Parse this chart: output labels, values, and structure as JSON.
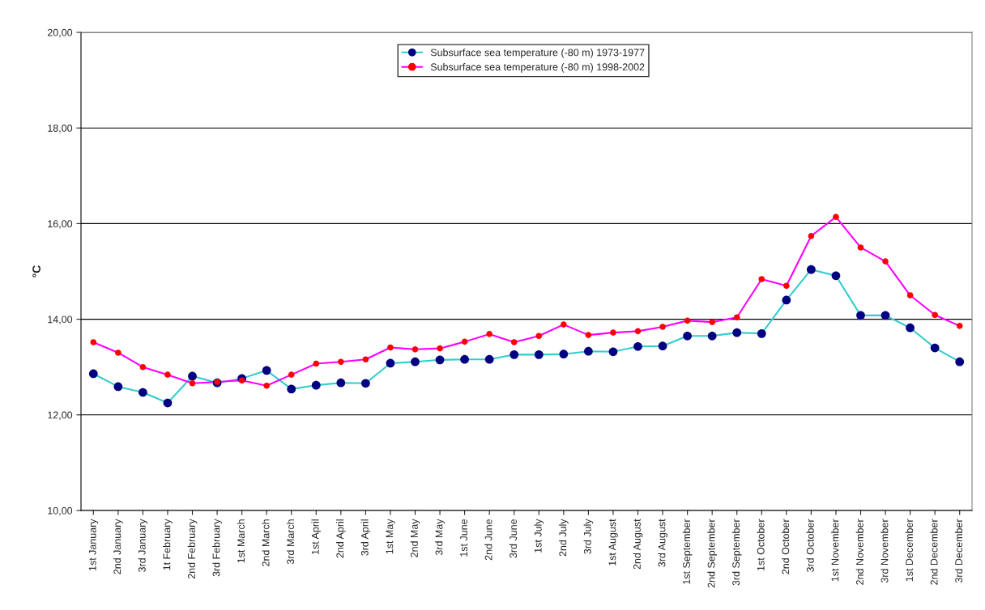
{
  "chart_data": {
    "type": "line",
    "ylabel": "°C",
    "categories": [
      "1st January",
      "2nd January",
      "3rd January",
      "1t February",
      "2nd February",
      "3rd February",
      "1st March",
      "2nd March",
      "3rd March",
      "1st April",
      "2nd April",
      "3rd April",
      "1st May",
      "2nd May",
      "3rd May",
      "1st June",
      "2nd June",
      "3rd June",
      "1st July",
      "2nd July",
      "3rd July",
      "1st August",
      "2nd August",
      "3rd August",
      "1st September",
      "2nd September",
      "3rd September",
      "1st October",
      "2nd October",
      "3rd October",
      "1st November",
      "2nd November",
      "3rd November",
      "1st December",
      "2nd December",
      "3rd December"
    ],
    "series": [
      {
        "name": "Subsurface sea temperature (-80 m) 1973-1977",
        "color": "#33cccc",
        "colors": [
          "#000080",
          "#000080",
          "#000080",
          "#000080",
          "#000080",
          "#000080",
          "#000080",
          "#000080",
          "#000080",
          "#000080",
          "#000080",
          "#000080",
          "#000080",
          "#000080",
          "#000080",
          "#000080",
          "#000080",
          "#000080",
          "#000080",
          "#000080",
          "#000080",
          "#000080",
          "#000080",
          "#000080",
          "#000080",
          "#000080",
          "#000080",
          "#000080",
          "#000080",
          "#000080",
          "#000080",
          "#000080",
          "#000080",
          "#000080",
          "#000080",
          "#000080"
        ],
        "values": [
          12.86,
          12.59,
          12.47,
          12.25,
          12.81,
          12.67,
          12.76,
          12.93,
          12.54,
          12.62,
          12.67,
          12.66,
          13.08,
          13.11,
          13.15,
          13.16,
          13.16,
          13.26,
          13.26,
          13.27,
          13.33,
          13.32,
          13.43,
          13.44,
          13.65,
          13.65,
          13.72,
          13.7,
          14.4,
          15.04,
          14.91,
          14.08,
          14.08,
          13.82,
          13.4,
          13.11
        ]
      },
      {
        "name": "Subsurface sea temperature (-80 m) 1998-2002",
        "color": "#ff00ff",
        "colors": [
          "#ff0000",
          "#ff0000",
          "#ff0000",
          "#ff0000",
          "#ff0000",
          "#ff0000",
          "#ff0000",
          "#ff0000",
          "#ff0000",
          "#ff0000",
          "#ff0000",
          "#ff0000",
          "#ff0000",
          "#ff0000",
          "#ff0000",
          "#ff0000",
          "#ff0000",
          "#ff0000",
          "#ff0000",
          "#ff0000",
          "#ff0000",
          "#ff0000",
          "#ff0000",
          "#ff0000",
          "#ff0000",
          "#ff0000",
          "#ff0000",
          "#ff0000",
          "#ff0000",
          "#ff0000",
          "#ff0000",
          "#ff0000",
          "#ff0000",
          "#ff0000",
          "#ff0000",
          "#ff0000"
        ],
        "values": [
          13.52,
          13.3,
          13.0,
          12.84,
          12.66,
          12.69,
          12.72,
          12.61,
          12.84,
          13.07,
          13.11,
          13.16,
          13.41,
          13.37,
          13.39,
          13.53,
          13.69,
          13.52,
          13.65,
          13.89,
          13.67,
          13.72,
          13.75,
          13.84,
          13.97,
          13.94,
          14.04,
          14.84,
          14.7,
          15.74,
          16.14,
          15.5,
          15.21,
          14.5,
          14.09,
          13.86
        ]
      }
    ],
    "ylim": [
      10,
      20
    ],
    "yticks": [
      {
        "value": 10,
        "label": "10,00"
      },
      {
        "value": 12,
        "label": "12,00"
      },
      {
        "value": 14,
        "label": "14,00"
      },
      {
        "value": 16,
        "label": "16,00"
      },
      {
        "value": 18,
        "label": "18,00"
      },
      {
        "value": 20,
        "label": "20,00"
      }
    ],
    "grid": "y",
    "legend": "top",
    "marker": "circle",
    "line_style": "solid"
  }
}
